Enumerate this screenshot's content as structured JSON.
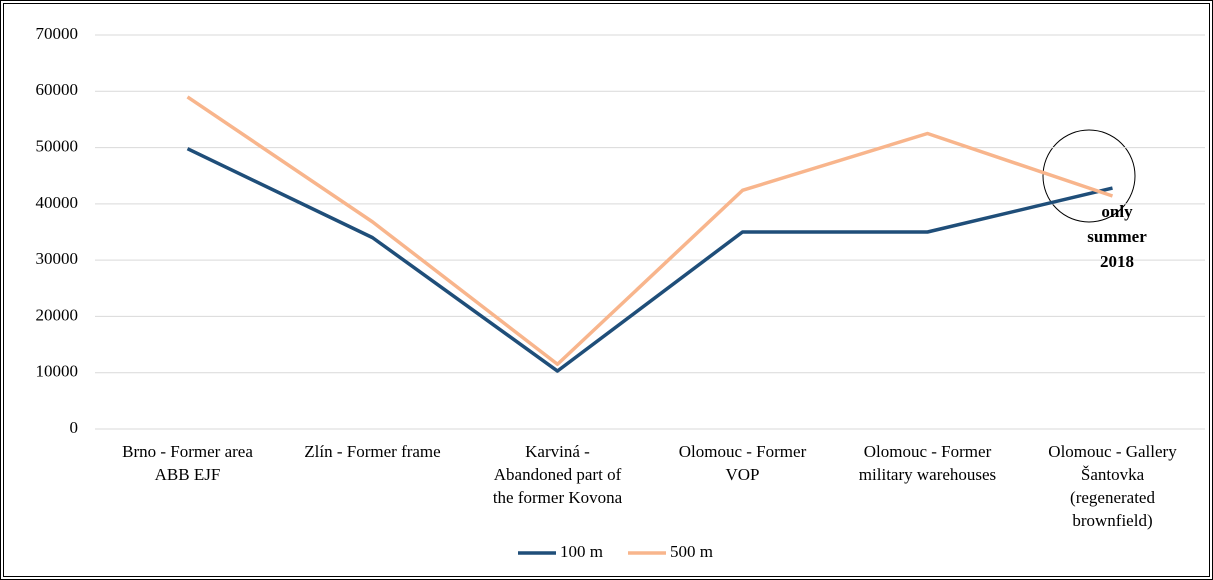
{
  "chart_data": {
    "type": "line",
    "categories": [
      "Brno - Former area\nABB EJF",
      "Zlín - Former frame",
      "Karviná -\nAbandoned part of\nthe former Kovona",
      "Olomouc - Former\nVOP",
      "Olomouc - Former\nmilitary warehouses",
      "Olomouc - Gallery\nŠantovka\n(regenerated\nbrownfield)"
    ],
    "series": [
      {
        "name": "100 m",
        "color": "#1f4e79",
        "values": [
          49800,
          34000,
          10300,
          35000,
          35000,
          42800
        ]
      },
      {
        "name": "500 m",
        "color": "#f8b58c",
        "values": [
          59000,
          36800,
          11500,
          42400,
          52500,
          41400
        ]
      }
    ],
    "ylim": [
      0,
      70000
    ],
    "yticks": [
      0,
      10000,
      20000,
      30000,
      40000,
      50000,
      60000,
      70000
    ],
    "grid": true,
    "legend": "bottom",
    "annotation": [
      "only",
      "summer",
      "2018"
    ]
  }
}
